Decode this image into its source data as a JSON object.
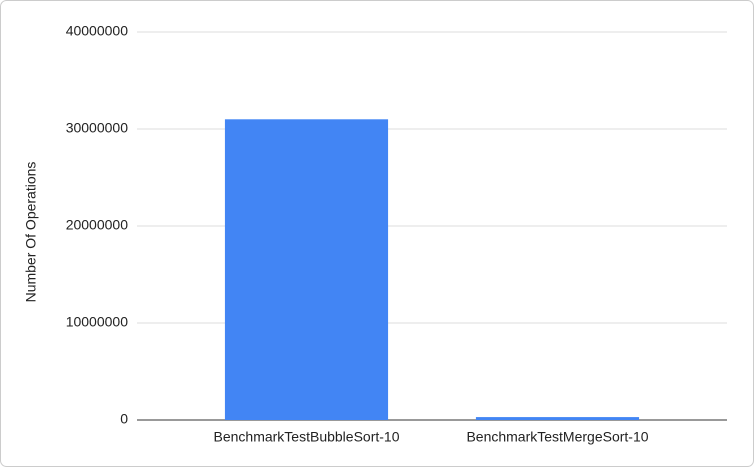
{
  "chart_data": {
    "type": "bar",
    "y_label": "Number Of Operations",
    "categories": [
      "BenchmarkTestBubbleSort-10",
      "BenchmarkTestMergeSort-10"
    ],
    "values": [
      31000000,
      300000
    ],
    "color": "#4285f4",
    "ylim": [
      0,
      40000000
    ],
    "yticks": [
      0,
      10000000,
      20000000,
      30000000,
      40000000
    ],
    "grid": true
  }
}
